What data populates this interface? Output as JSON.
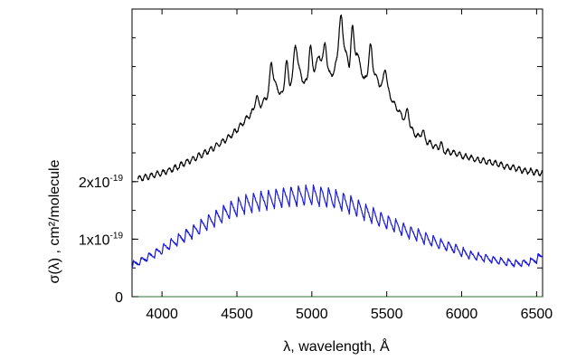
{
  "chart_data": {
    "type": "line",
    "title": "",
    "xlabel": "λ, wavelength, Å",
    "ylabel": "σ(λ) , cm²/molecule",
    "xlim": [
      3800,
      6540
    ],
    "ylim": [
      0,
      5e-19
    ],
    "grid": false,
    "x_ticks": [
      4000,
      4500,
      5000,
      5500,
      6000,
      6500
    ],
    "x_tick_labels": [
      "4000",
      "4500",
      "5000",
      "5500",
      "6000",
      "6500"
    ],
    "y_ticks": [
      {
        "value": 0,
        "label": "0",
        "exp": ""
      },
      {
        "value": 1e-19,
        "label": "1x10",
        "exp": "-19"
      },
      {
        "value": 2e-19,
        "label": "2x10",
        "exp": "-19"
      }
    ],
    "series": [
      {
        "color": "#000000",
        "x": [
          3840,
          3900,
          3950,
          4000,
          4050,
          4100,
          4150,
          4200,
          4250,
          4300,
          4350,
          4400,
          4450,
          4500,
          4550,
          4600,
          4650,
          4700,
          4750,
          4800,
          4850,
          4900,
          4950,
          5000,
          5050,
          5100,
          5150,
          5200,
          5250,
          5300,
          5350,
          5400,
          5450,
          5500,
          5550,
          5600,
          5650,
          5700,
          5750,
          5800,
          5850,
          5900,
          5950,
          6000,
          6050,
          6100,
          6150,
          6200,
          6250,
          6300,
          6350,
          6400,
          6450,
          6500,
          6540
        ],
        "y": [
          2.05e-19,
          2.08e-19,
          2.12e-19,
          2.15e-19,
          2.2e-19,
          2.25e-19,
          2.32e-19,
          2.38e-19,
          2.45e-19,
          2.52e-19,
          2.6e-19,
          2.68e-19,
          2.78e-19,
          2.9e-19,
          3.05e-19,
          3.2e-19,
          3.3e-19,
          3.48e-19,
          3.7e-19,
          3.5e-19,
          3.65e-19,
          4.05e-19,
          3.7e-19,
          3.82e-19,
          4.2e-19,
          3.85e-19,
          3.9e-19,
          4.6e-19,
          3.95e-19,
          4.25e-19,
          3.75e-19,
          4e-19,
          3.7e-19,
          3.6e-19,
          3.35e-19,
          3.15e-19,
          2.95e-19,
          2.8e-19,
          2.72e-19,
          2.65e-19,
          2.55e-19,
          2.52e-19,
          2.5e-19,
          2.45e-19,
          2.42e-19,
          2.38e-19,
          2.36e-19,
          2.33e-19,
          2.3e-19,
          2.26e-19,
          2.24e-19,
          2.2e-19,
          2.18e-19,
          2.16e-19,
          2.15e-19
        ],
        "peaks_x": [
          4630,
          4730,
          4830,
          4890,
          4990,
          5090,
          5190,
          5270,
          5390,
          5490,
          5640,
          5740,
          5860
        ],
        "peaks_amp": [
          2.2e-20,
          4.5e-20,
          5e-20,
          4e-20,
          5.5e-20,
          5e-20,
          3.5e-20,
          6e-20,
          4e-20,
          3.5e-20,
          2.5e-20,
          1.5e-20,
          1.2e-20
        ]
      },
      {
        "color": "#1a1adb",
        "x": [
          3800,
          3850,
          3900,
          3950,
          4000,
          4050,
          4100,
          4150,
          4200,
          4250,
          4300,
          4350,
          4400,
          4450,
          4500,
          4550,
          4600,
          4650,
          4700,
          4750,
          4800,
          4850,
          4900,
          4950,
          5000,
          5050,
          5100,
          5150,
          5200,
          5250,
          5300,
          5350,
          5400,
          5450,
          5500,
          5550,
          5600,
          5650,
          5700,
          5750,
          5800,
          5850,
          5900,
          5950,
          6000,
          6050,
          6100,
          6150,
          6200,
          6250,
          6300,
          6350,
          6400,
          6450,
          6500,
          6540
        ],
        "y": [
          5.5e-20,
          6e-20,
          6.8e-20,
          7.5e-20,
          8.2e-20,
          9e-20,
          9.8e-20,
          1.05e-19,
          1.12e-19,
          1.2e-19,
          1.28e-19,
          1.35e-19,
          1.42e-19,
          1.5e-19,
          1.55e-19,
          1.6e-19,
          1.63e-19,
          1.66e-19,
          1.68e-19,
          1.7e-19,
          1.72e-19,
          1.74e-19,
          1.75e-19,
          1.76e-19,
          1.76e-19,
          1.75e-19,
          1.73e-19,
          1.7e-19,
          1.66e-19,
          1.6e-19,
          1.55e-19,
          1.48e-19,
          1.42e-19,
          1.35e-19,
          1.3e-19,
          1.25e-19,
          1.18e-19,
          1.12e-19,
          1.08e-19,
          1.02e-19,
          9.7e-20,
          9.2e-20,
          8.8e-20,
          8.4e-20,
          7.8e-20,
          7.3e-20,
          7e-20,
          6.8e-20,
          6.5e-20,
          6.2e-20,
          6e-20,
          5.8e-20,
          5.8e-20,
          6e-20,
          6.5e-20,
          7.2e-20
        ],
        "peaks_period": 50,
        "peaks_amp_base": 3.5e-20
      }
    ]
  }
}
